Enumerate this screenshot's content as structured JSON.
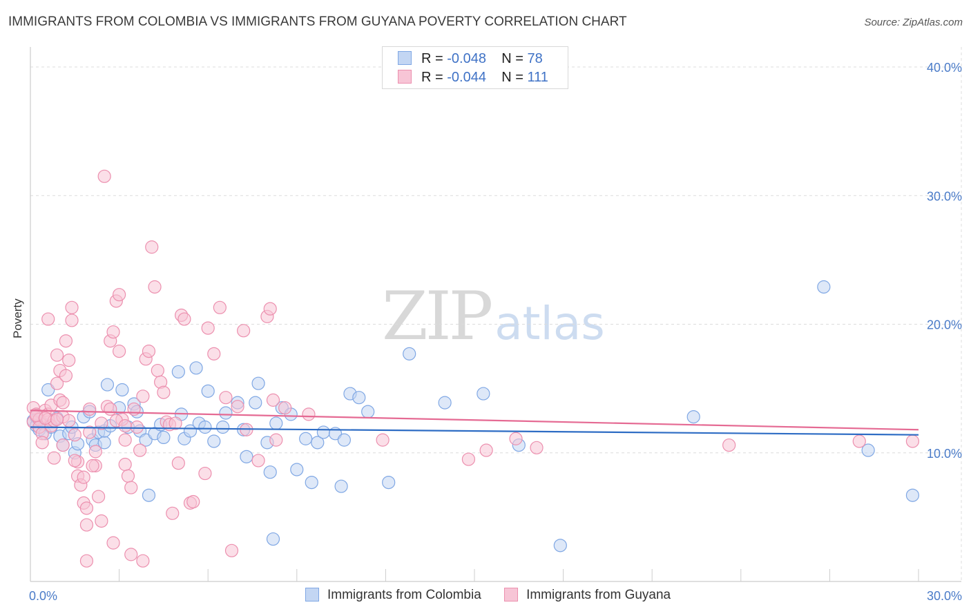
{
  "header": {
    "title": "IMMIGRANTS FROM COLOMBIA VS IMMIGRANTS FROM GUYANA POVERTY CORRELATION CHART",
    "source": "Source: ZipAtlas.com"
  },
  "watermark": {
    "zip": "ZIP",
    "atlas": "atlas"
  },
  "stats_legend": [
    {
      "r_label": "R =",
      "r_value": "-0.048",
      "n_label": "N =",
      "n_value": "78",
      "color": "#7fa7e4",
      "fill": "#c3d6f3"
    },
    {
      "r_label": "R =",
      "r_value": "-0.044",
      "n_label": "N =",
      "n_value": "111",
      "color": "#ec8fae",
      "fill": "#f7c5d6"
    }
  ],
  "chart_data": {
    "type": "scatter",
    "ylabel": "Poverty",
    "xlabel": "",
    "xlim": [
      0,
      30
    ],
    "ylim": [
      0,
      40
    ],
    "x_ticks": [
      "0.0%",
      "30.0%"
    ],
    "y_ticks": [
      "10.0%",
      "20.0%",
      "30.0%",
      "40.0%"
    ],
    "grid": true,
    "legend": "bottom",
    "series": [
      {
        "name": "Immigrants from Colombia",
        "color": "#7fa7e4",
        "fill": "#c3d6f3",
        "trend": {
          "x": [
            0,
            30
          ],
          "y": [
            12.0,
            11.4
          ]
        },
        "points": [
          [
            0.1,
            12.5
          ],
          [
            0.2,
            12.1
          ],
          [
            0.2,
            12.8
          ],
          [
            0.3,
            11.8
          ],
          [
            0.4,
            12.3
          ],
          [
            0.5,
            11.5
          ],
          [
            0.6,
            14.9
          ],
          [
            0.7,
            12.0
          ],
          [
            0.9,
            12.7
          ],
          [
            1.0,
            11.3
          ],
          [
            1.1,
            10.6
          ],
          [
            1.3,
            11.5
          ],
          [
            1.4,
            12.0
          ],
          [
            1.5,
            10.0
          ],
          [
            1.6,
            10.7
          ],
          [
            1.8,
            12.8
          ],
          [
            2.0,
            13.2
          ],
          [
            2.1,
            11.0
          ],
          [
            2.2,
            10.6
          ],
          [
            2.3,
            11.6
          ],
          [
            2.5,
            10.8
          ],
          [
            2.5,
            11.7
          ],
          [
            2.6,
            15.3
          ],
          [
            2.7,
            12.1
          ],
          [
            3.0,
            13.5
          ],
          [
            3.1,
            14.9
          ],
          [
            3.3,
            12.0
          ],
          [
            3.5,
            13.8
          ],
          [
            3.6,
            13.2
          ],
          [
            3.7,
            11.7
          ],
          [
            3.9,
            11.0
          ],
          [
            4.0,
            6.7
          ],
          [
            4.2,
            11.5
          ],
          [
            4.4,
            12.2
          ],
          [
            4.5,
            11.2
          ],
          [
            5.0,
            16.3
          ],
          [
            5.1,
            13.0
          ],
          [
            5.2,
            11.1
          ],
          [
            5.4,
            11.7
          ],
          [
            5.6,
            16.6
          ],
          [
            5.7,
            12.3
          ],
          [
            5.9,
            12.0
          ],
          [
            6.0,
            14.8
          ],
          [
            6.2,
            10.9
          ],
          [
            6.5,
            12.0
          ],
          [
            6.6,
            13.1
          ],
          [
            7.0,
            13.9
          ],
          [
            7.2,
            11.8
          ],
          [
            7.3,
            9.7
          ],
          [
            7.7,
            15.4
          ],
          [
            7.6,
            13.9
          ],
          [
            8.0,
            10.8
          ],
          [
            8.1,
            8.5
          ],
          [
            8.3,
            12.3
          ],
          [
            8.5,
            13.5
          ],
          [
            8.8,
            13.0
          ],
          [
            9.0,
            8.7
          ],
          [
            9.3,
            11.1
          ],
          [
            9.5,
            7.7
          ],
          [
            9.7,
            10.8
          ],
          [
            9.9,
            11.6
          ],
          [
            10.3,
            11.5
          ],
          [
            10.5,
            7.4
          ],
          [
            10.6,
            11.0
          ],
          [
            10.8,
            14.6
          ],
          [
            11.1,
            14.3
          ],
          [
            11.4,
            13.2
          ],
          [
            12.1,
            7.7
          ],
          [
            12.8,
            17.7
          ],
          [
            14.0,
            13.9
          ],
          [
            15.3,
            14.6
          ],
          [
            16.5,
            10.6
          ],
          [
            17.9,
            2.8
          ],
          [
            22.4,
            12.8
          ],
          [
            26.8,
            22.9
          ],
          [
            28.3,
            10.2
          ],
          [
            29.8,
            6.7
          ],
          [
            8.2,
            3.3
          ]
        ]
      },
      {
        "name": "Immigrants from Guyana",
        "color": "#ec8fae",
        "fill": "#f7c5d6",
        "trend": {
          "x": [
            0,
            30
          ],
          "y": [
            13.3,
            11.8
          ]
        },
        "points": [
          [
            0.1,
            13.5
          ],
          [
            0.1,
            12.4
          ],
          [
            0.2,
            13.0
          ],
          [
            0.3,
            12.6
          ],
          [
            0.3,
            12.0
          ],
          [
            0.4,
            11.5
          ],
          [
            0.4,
            10.8
          ],
          [
            0.5,
            13.3
          ],
          [
            0.6,
            13.0
          ],
          [
            0.6,
            12.6
          ],
          [
            0.7,
            12.1
          ],
          [
            0.7,
            13.7
          ],
          [
            0.8,
            12.5
          ],
          [
            0.9,
            15.4
          ],
          [
            0.9,
            17.6
          ],
          [
            1.0,
            16.4
          ],
          [
            1.0,
            14.1
          ],
          [
            1.1,
            13.9
          ],
          [
            1.1,
            12.8
          ],
          [
            1.2,
            18.7
          ],
          [
            1.3,
            17.2
          ],
          [
            1.3,
            12.5
          ],
          [
            1.4,
            21.3
          ],
          [
            1.4,
            20.3
          ],
          [
            1.5,
            11.4
          ],
          [
            1.6,
            9.3
          ],
          [
            1.6,
            8.2
          ],
          [
            1.7,
            7.5
          ],
          [
            1.8,
            8.1
          ],
          [
            1.8,
            6.1
          ],
          [
            1.9,
            5.7
          ],
          [
            2.0,
            13.4
          ],
          [
            2.0,
            11.6
          ],
          [
            2.2,
            10.1
          ],
          [
            2.2,
            9.0
          ],
          [
            2.3,
            6.6
          ],
          [
            2.4,
            4.7
          ],
          [
            2.5,
            31.5
          ],
          [
            2.6,
            13.6
          ],
          [
            2.7,
            18.7
          ],
          [
            2.8,
            19.4
          ],
          [
            2.9,
            21.8
          ],
          [
            3.0,
            22.3
          ],
          [
            3.0,
            17.9
          ],
          [
            3.1,
            12.6
          ],
          [
            3.2,
            11.0
          ],
          [
            3.2,
            9.1
          ],
          [
            3.3,
            8.2
          ],
          [
            3.4,
            7.3
          ],
          [
            3.5,
            13.4
          ],
          [
            3.6,
            12.0
          ],
          [
            3.7,
            10.2
          ],
          [
            3.8,
            14.4
          ],
          [
            3.9,
            17.3
          ],
          [
            4.0,
            17.9
          ],
          [
            4.1,
            26.0
          ],
          [
            4.2,
            22.9
          ],
          [
            4.3,
            16.4
          ],
          [
            4.4,
            15.5
          ],
          [
            4.5,
            14.7
          ],
          [
            4.6,
            12.4
          ],
          [
            4.7,
            12.2
          ],
          [
            4.8,
            5.3
          ],
          [
            5.0,
            9.2
          ],
          [
            5.1,
            20.7
          ],
          [
            5.2,
            20.4
          ],
          [
            5.4,
            6.1
          ],
          [
            5.5,
            6.2
          ],
          [
            5.9,
            8.4
          ],
          [
            6.0,
            19.7
          ],
          [
            6.2,
            17.7
          ],
          [
            6.4,
            21.3
          ],
          [
            6.6,
            14.3
          ],
          [
            6.8,
            2.4
          ],
          [
            7.0,
            13.6
          ],
          [
            7.2,
            19.5
          ],
          [
            7.3,
            11.8
          ],
          [
            7.7,
            9.4
          ],
          [
            8.0,
            20.6
          ],
          [
            8.1,
            21.2
          ],
          [
            8.2,
            14.1
          ],
          [
            8.3,
            11.0
          ],
          [
            8.6,
            13.5
          ],
          [
            9.4,
            13.0
          ],
          [
            0.2,
            12.9
          ],
          [
            0.5,
            12.7
          ],
          [
            0.9,
            12.6
          ],
          [
            1.1,
            10.6
          ],
          [
            1.5,
            9.4
          ],
          [
            0.8,
            9.6
          ],
          [
            0.6,
            20.4
          ],
          [
            1.2,
            16.0
          ],
          [
            2.7,
            13.4
          ],
          [
            2.9,
            12.5
          ],
          [
            3.2,
            12.1
          ],
          [
            4.9,
            12.3
          ],
          [
            1.9,
            4.4
          ],
          [
            2.8,
            3.0
          ],
          [
            3.4,
            2.1
          ],
          [
            3.8,
            1.6
          ],
          [
            1.9,
            1.6
          ],
          [
            2.1,
            9.0
          ],
          [
            2.4,
            12.3
          ],
          [
            11.9,
            11.0
          ],
          [
            16.4,
            11.1
          ],
          [
            17.1,
            10.4
          ],
          [
            23.6,
            10.6
          ],
          [
            28.0,
            10.9
          ],
          [
            15.4,
            10.2
          ],
          [
            14.8,
            9.5
          ],
          [
            29.8,
            10.9
          ]
        ]
      }
    ]
  }
}
